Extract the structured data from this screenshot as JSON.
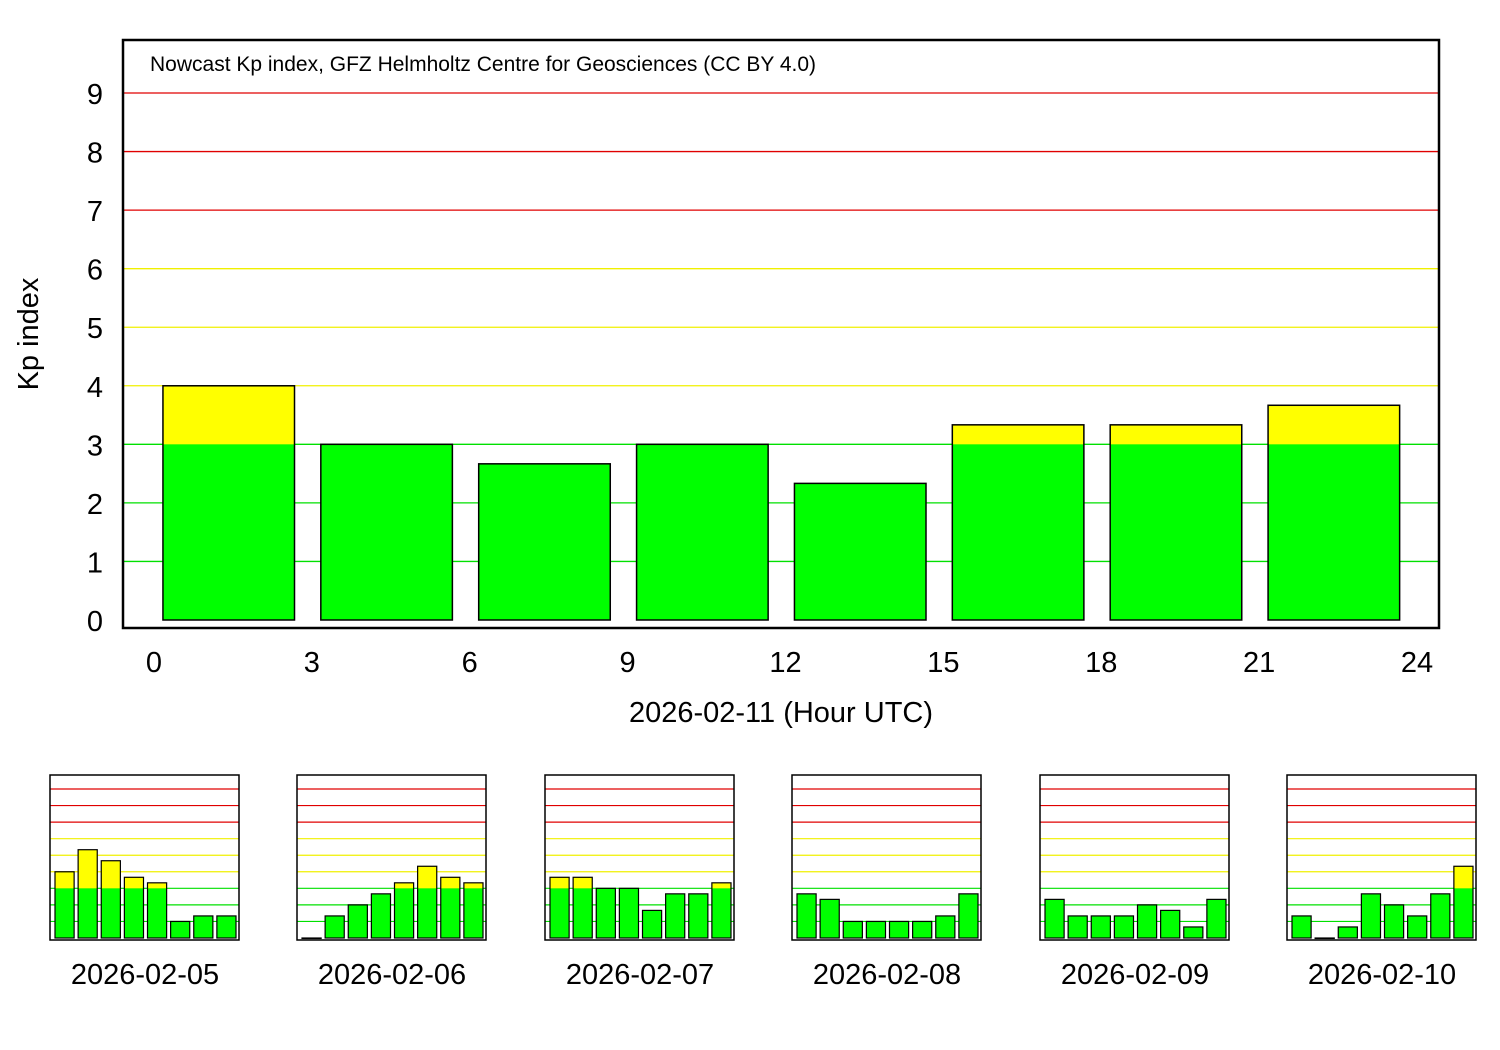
{
  "chart_data": [
    {
      "type": "bar",
      "title": "Nowcast Kp index, GFZ Helmholtz Centre for Geosciences (CC BY 4.0)",
      "xlabel": "2026-02-11 (Hour UTC)",
      "ylabel": "Kp index",
      "xlim": [
        0,
        24
      ],
      "ylim": [
        0,
        9
      ],
      "xticks": [
        "0",
        "3",
        "6",
        "9",
        "12",
        "15",
        "18",
        "21",
        "24"
      ],
      "yticks": [
        "0",
        "1",
        "2",
        "3",
        "4",
        "5",
        "6",
        "7",
        "8",
        "9"
      ],
      "x": [
        0,
        3,
        6,
        9,
        12,
        15,
        18,
        21
      ],
      "values": [
        4.0,
        3.0,
        2.667,
        3.0,
        2.333,
        3.333,
        3.333,
        3.667
      ],
      "grid": true
    },
    {
      "type": "bar",
      "label": "2026-02-05",
      "values": [
        4.0,
        5.333,
        4.667,
        3.667,
        3.333,
        1.0,
        1.333,
        1.333
      ]
    },
    {
      "type": "bar",
      "label": "2026-02-06",
      "values": [
        0.0,
        1.333,
        2.0,
        2.667,
        3.333,
        4.333,
        3.667,
        3.333
      ]
    },
    {
      "type": "bar",
      "label": "2026-02-07",
      "values": [
        3.667,
        3.667,
        3.0,
        3.0,
        1.667,
        2.667,
        2.667,
        3.333
      ]
    },
    {
      "type": "bar",
      "label": "2026-02-08",
      "values": [
        2.667,
        2.333,
        1.0,
        1.0,
        1.0,
        1.0,
        1.333,
        2.667
      ]
    },
    {
      "type": "bar",
      "label": "2026-02-09",
      "values": [
        2.333,
        1.333,
        1.333,
        1.333,
        2.0,
        1.667,
        0.667,
        2.333
      ]
    },
    {
      "type": "bar",
      "label": "2026-02-10",
      "values": [
        1.333,
        0.0,
        0.667,
        2.667,
        2.0,
        1.333,
        2.667,
        4.333
      ]
    }
  ],
  "colors": {
    "green": "#00ff00",
    "yellow": "#ffff00",
    "red": "#ff0000",
    "gridGreen": "#00e000",
    "gridYellow": "#f0f000",
    "gridRed": "#e00000"
  }
}
